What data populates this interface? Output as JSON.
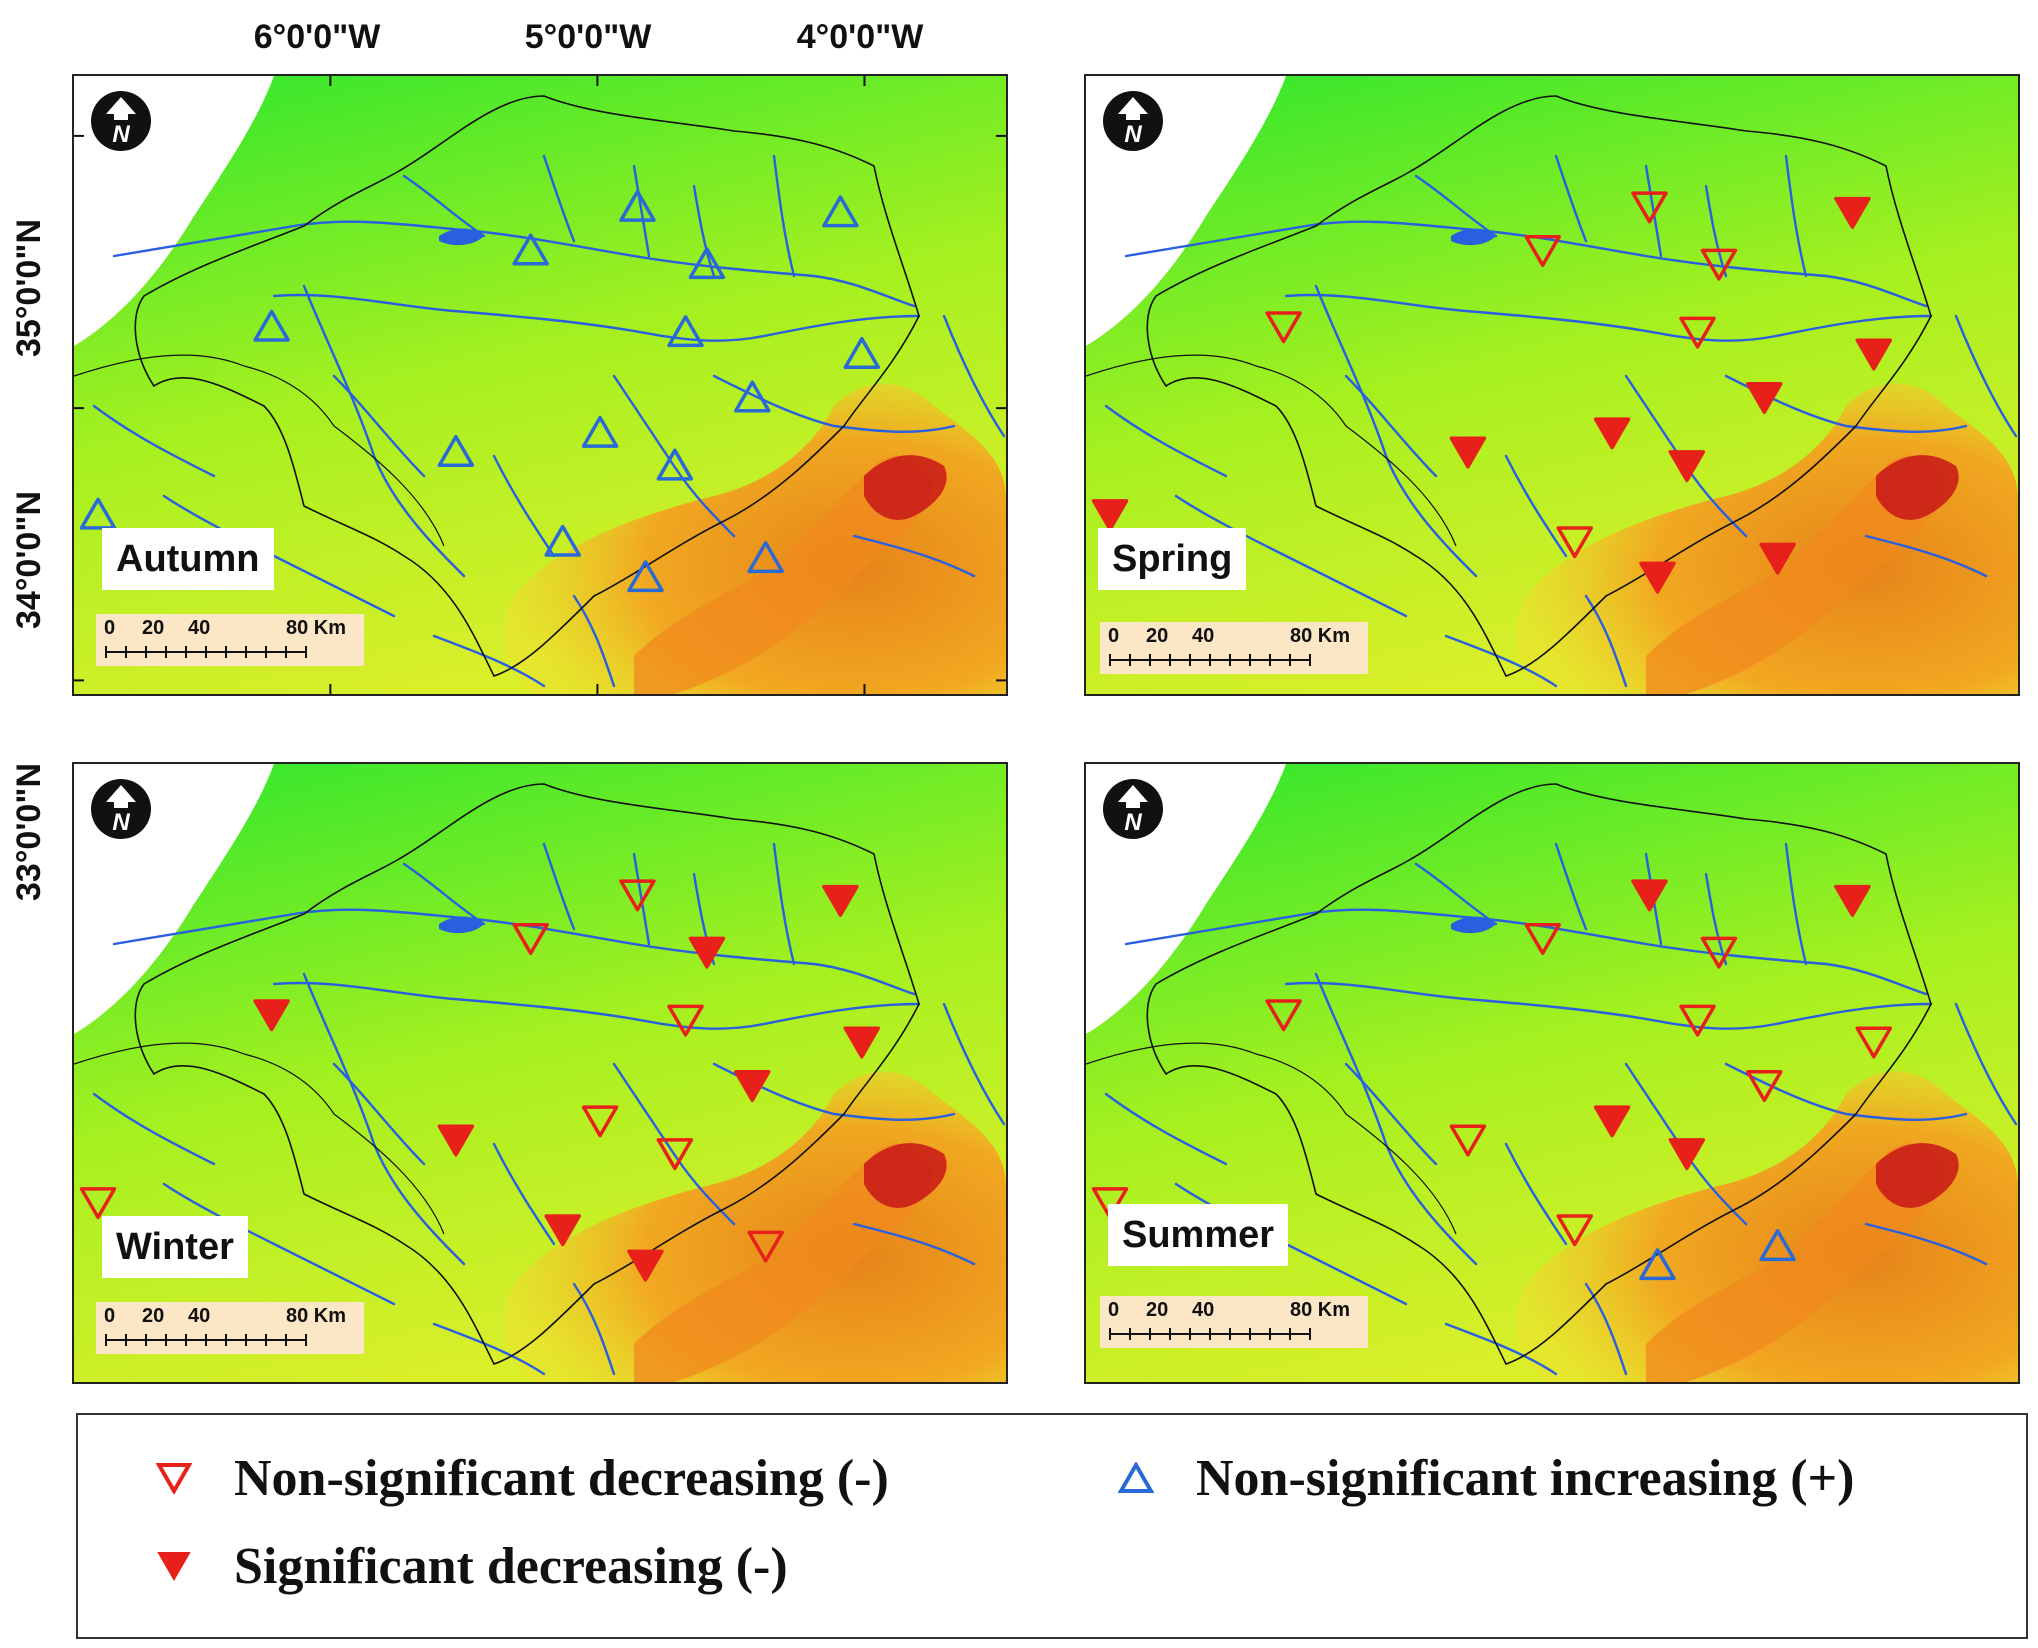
{
  "map": {
    "lon_labels": [
      "6°0'0\"W",
      "5°0'0\"W",
      "4°0'0\"W"
    ],
    "lat_labels": [
      "35°0'0\"N",
      "34°0'0\"N",
      "33°0'0\"N"
    ],
    "lon_range": [
      -6.96,
      -3.47
    ],
    "lat_range": [
      32.95,
      35.22
    ],
    "colors": {
      "low": "#2ee62e",
      "mid": "#a6f020",
      "high": "#f5a020",
      "peak": "#c81818",
      "river": "#2a5fe0",
      "sea": "#ffffff",
      "decrease": "#e8201a",
      "increase": "#2a6ad6"
    },
    "north_arrow": {
      "icon": "north-arrow-icon",
      "letter": "N"
    },
    "scale_bar": {
      "labels": [
        "0",
        "20",
        "40",
        "80 Km"
      ]
    }
  },
  "stations": [
    {
      "id": "S1",
      "lon": -6.22,
      "lat": 34.3
    },
    {
      "id": "S2",
      "lon": -5.25,
      "lat": 34.58
    },
    {
      "id": "S3",
      "lon": -4.85,
      "lat": 34.74
    },
    {
      "id": "S4",
      "lon": -4.59,
      "lat": 34.53
    },
    {
      "id": "S5",
      "lon": -4.09,
      "lat": 34.72
    },
    {
      "id": "S6",
      "lon": -4.67,
      "lat": 34.28
    },
    {
      "id": "S7",
      "lon": -4.01,
      "lat": 34.2
    },
    {
      "id": "S8",
      "lon": -4.42,
      "lat": 34.04
    },
    {
      "id": "S9",
      "lon": -4.99,
      "lat": 33.91
    },
    {
      "id": "S10",
      "lon": -5.53,
      "lat": 33.84
    },
    {
      "id": "S11",
      "lon": -4.71,
      "lat": 33.79
    },
    {
      "id": "S12",
      "lon": -6.87,
      "lat": 33.61
    },
    {
      "id": "S13",
      "lon": -5.13,
      "lat": 33.51
    },
    {
      "id": "S14",
      "lon": -4.37,
      "lat": 33.45
    },
    {
      "id": "S15",
      "lon": -4.82,
      "lat": 33.38
    }
  ],
  "panels": [
    {
      "season": "Autumn",
      "trends": [
        "nsi",
        "nsi",
        "nsi",
        "nsi",
        "nsi",
        "nsi",
        "nsi",
        "nsi",
        "nsi",
        "nsi",
        "nsi",
        "nsi",
        "nsi",
        "nsi",
        "nsi"
      ]
    },
    {
      "season": "Spring",
      "trends": [
        "nsd",
        "nsd",
        "nsd",
        "nsd",
        "sd",
        "nsd",
        "sd",
        "sd",
        "sd",
        "sd",
        "sd",
        "sd",
        "nsd",
        "sd",
        "sd"
      ]
    },
    {
      "season": "Winter",
      "trends": [
        "sd",
        "nsd",
        "nsd",
        "sd",
        "sd",
        "nsd",
        "sd",
        "sd",
        "nsd",
        "sd",
        "nsd",
        "nsd",
        "sd",
        "nsd",
        "sd"
      ]
    },
    {
      "season": "Summer",
      "trends": [
        "nsd",
        "nsd",
        "sd",
        "nsd",
        "sd",
        "nsd",
        "nsd",
        "nsd",
        "sd",
        "nsd",
        "sd",
        "nsd",
        "nsd",
        "nsi",
        "nsi"
      ]
    }
  ],
  "legend": {
    "items": [
      {
        "key": "nsd",
        "label": "Non-significant decreasing (-)"
      },
      {
        "key": "nsi",
        "label": "Non-significant increasing (+)"
      },
      {
        "key": "sd",
        "label": "Significant decreasing (-)"
      }
    ]
  }
}
